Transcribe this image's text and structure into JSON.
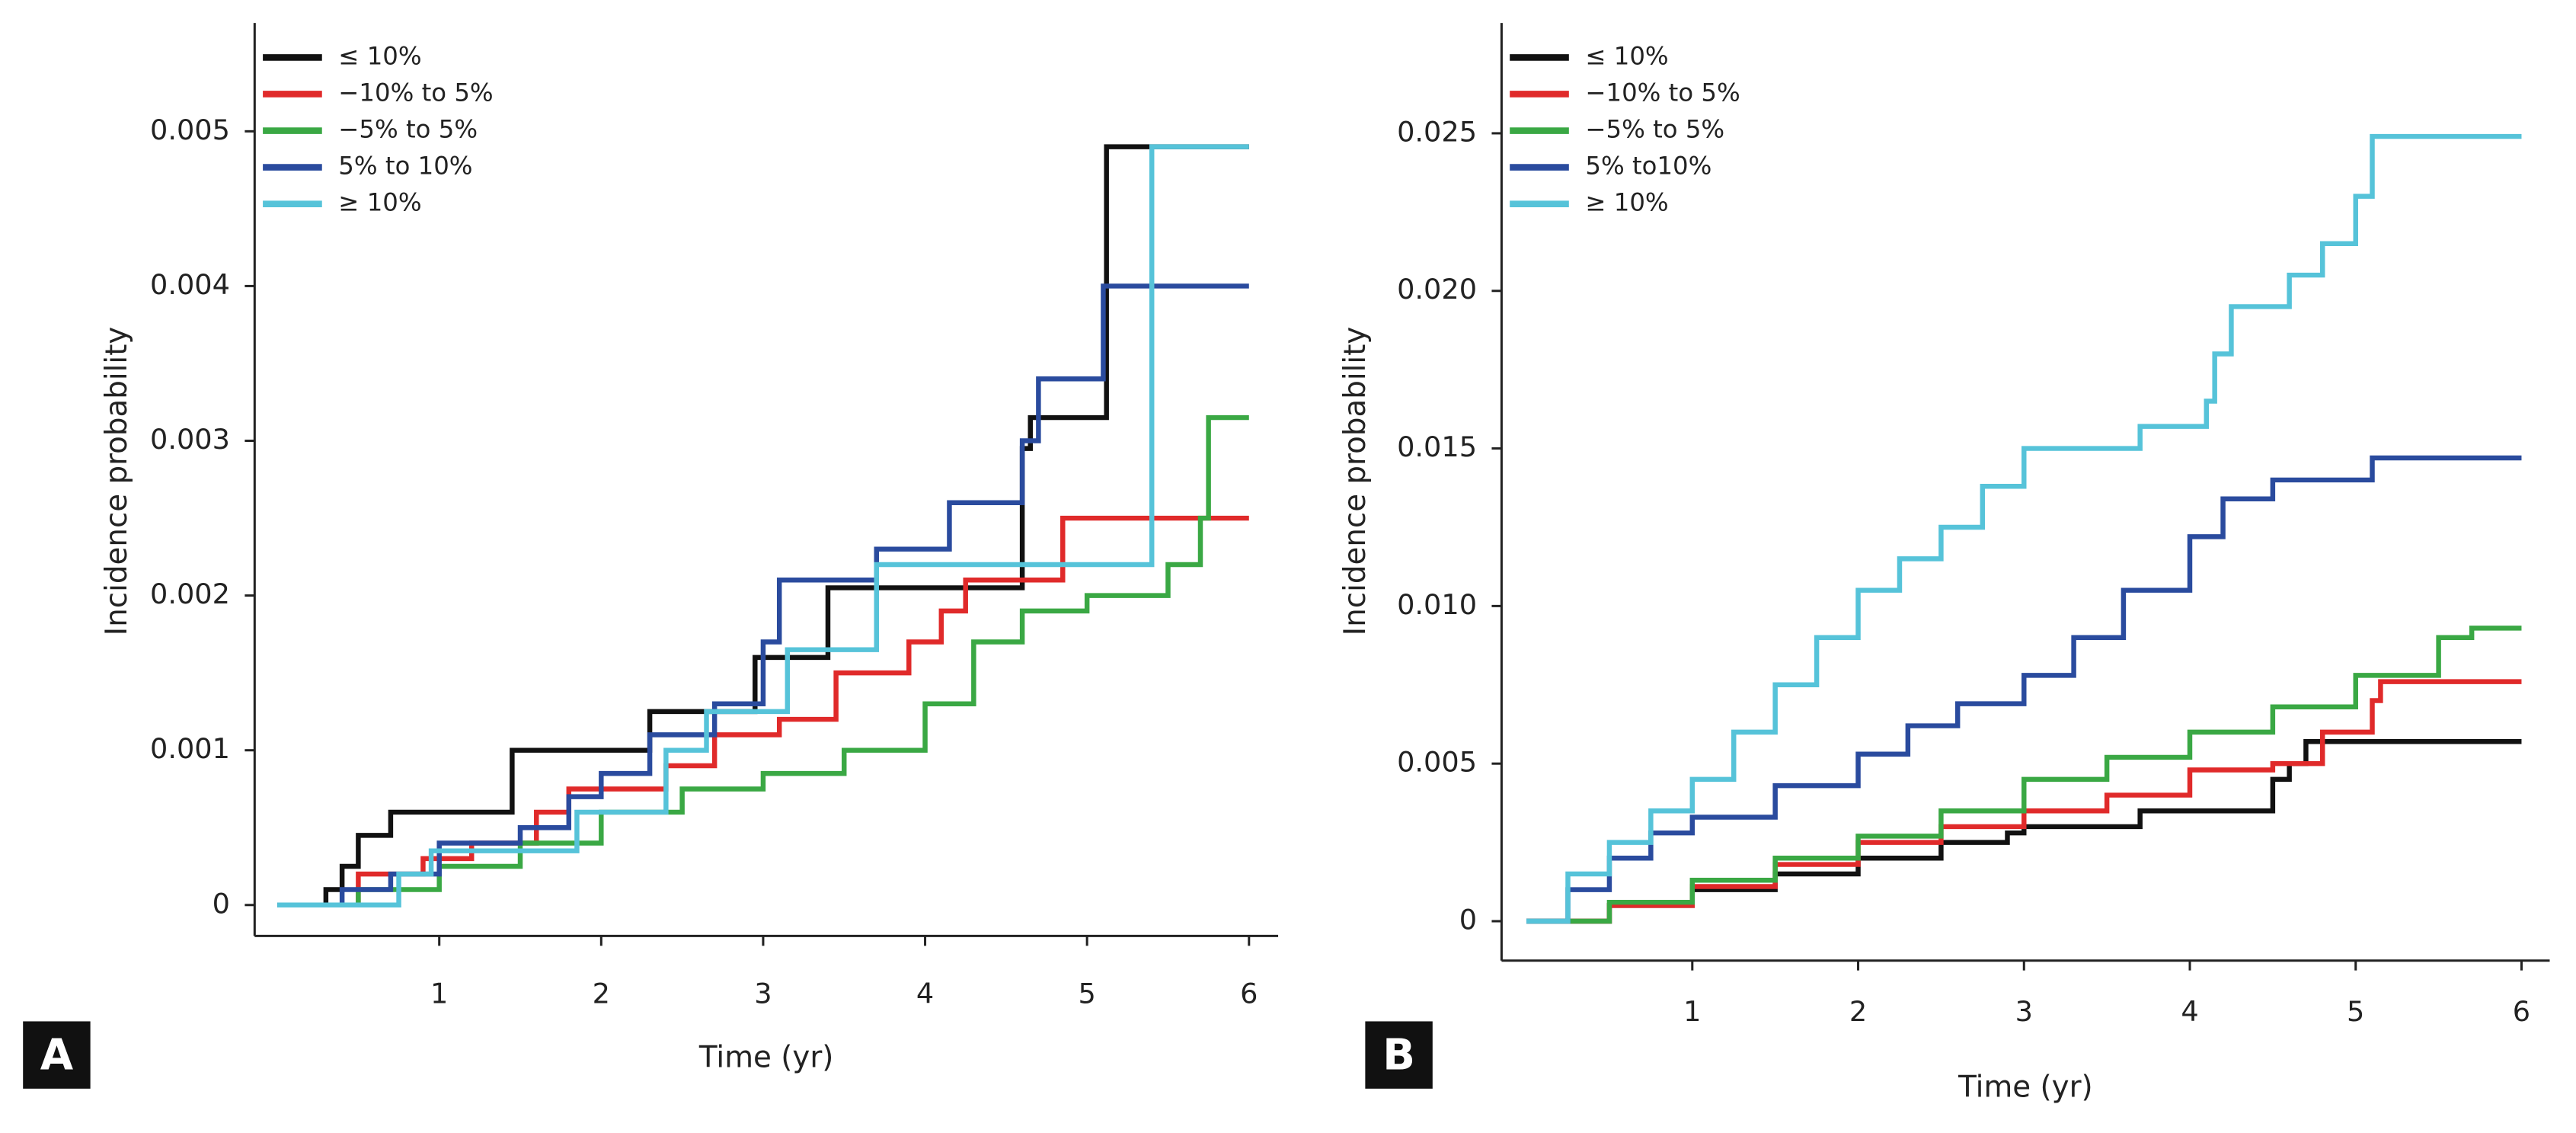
{
  "chart_data": [
    {
      "type": "line",
      "step": "post",
      "panel": "A",
      "xlabel": "Time (yr)",
      "ylabel": "Incidence probability",
      "legend": "upper left",
      "xlim": [
        -0.14,
        6.18
      ],
      "ylim": [
        -0.0002,
        0.0057
      ],
      "xticks": [
        1,
        2,
        3,
        4,
        5,
        6
      ],
      "yticks": [
        0,
        0.001,
        0.002,
        0.003,
        0.004,
        0.005
      ],
      "series": [
        {
          "name": "≤ 10%",
          "color": "#111111",
          "x": [
            0,
            0.3,
            0.4,
            0.5,
            0.7,
            1.45,
            2.3,
            2.95,
            3.4,
            4.6,
            4.65,
            5.12,
            6
          ],
          "values": [
            0,
            0.0001,
            0.00025,
            0.00045,
            0.0006,
            0.001,
            0.00125,
            0.0016,
            0.00205,
            0.00295,
            0.00315,
            0.0049,
            0.0049
          ]
        },
        {
          "name": "−10% to 5%",
          "color": "#e02a2a",
          "x": [
            0,
            0.5,
            0.9,
            1.2,
            1.6,
            1.8,
            2.4,
            2.7,
            3.1,
            3.45,
            3.9,
            4.1,
            4.25,
            4.85,
            6
          ],
          "values": [
            0,
            0.0002,
            0.0003,
            0.0004,
            0.0006,
            0.00075,
            0.0009,
            0.0011,
            0.0012,
            0.0015,
            0.0017,
            0.0019,
            0.0021,
            0.0025,
            0.0025
          ]
        },
        {
          "name": "−5% to 5%",
          "color": "#3aa844",
          "x": [
            0,
            0.5,
            1,
            1.5,
            2,
            2.5,
            3,
            3.5,
            4,
            4.3,
            4.6,
            5,
            5.5,
            5.7,
            5.75,
            6
          ],
          "values": [
            0,
            0.0001,
            0.00025,
            0.0004,
            0.0006,
            0.00075,
            0.00085,
            0.001,
            0.0013,
            0.0017,
            0.0019,
            0.002,
            0.0022,
            0.0025,
            0.00315,
            0.00315
          ]
        },
        {
          "name": "5% to 10%",
          "color": "#2a4b9e",
          "x": [
            0,
            0.4,
            0.7,
            1,
            1.5,
            1.8,
            2,
            2.3,
            2.7,
            3,
            3.1,
            3.7,
            4.15,
            4.6,
            4.7,
            5.1,
            6
          ],
          "values": [
            0,
            0.0001,
            0.0002,
            0.0004,
            0.0005,
            0.0007,
            0.00085,
            0.0011,
            0.0013,
            0.0017,
            0.0021,
            0.0023,
            0.0026,
            0.003,
            0.0034,
            0.004,
            0.004
          ]
        },
        {
          "name": "≥ 10%",
          "color": "#56c3d9",
          "x": [
            0,
            0.75,
            0.95,
            1.85,
            2.4,
            2.65,
            3.15,
            3.7,
            5.4,
            6
          ],
          "values": [
            0,
            0.0002,
            0.00035,
            0.0006,
            0.001,
            0.00125,
            0.00165,
            0.0022,
            0.0049,
            0.0049
          ]
        }
      ]
    },
    {
      "type": "line",
      "step": "post",
      "panel": "B",
      "xlabel": "Time (yr)",
      "ylabel": "Incidence probability",
      "legend": "upper left",
      "xlim": [
        -0.15,
        6.17
      ],
      "ylim": [
        -0.00125,
        0.0285
      ],
      "xticks": [
        1,
        2,
        3,
        4,
        5,
        6
      ],
      "yticks": [
        0,
        0.005,
        {
          "value": 0.01,
          "label": "0.010"
        },
        0.015,
        {
          "value": 0.02,
          "label": "0.020"
        },
        0.025
      ],
      "series": [
        {
          "name": "≤ 10%",
          "color": "#111111",
          "x": [
            0,
            0.5,
            1,
            1.5,
            2,
            2.5,
            2.9,
            3,
            3.5,
            3.7,
            4,
            4.5,
            4.6,
            4.7,
            6
          ],
          "values": [
            0,
            0.0005,
            0.001,
            0.0015,
            0.002,
            0.0025,
            0.0028,
            0.003,
            0.003,
            0.0035,
            0.0035,
            0.0045,
            0.005,
            0.0057,
            0.0057
          ]
        },
        {
          "name": "−10% to 5%",
          "color": "#e02a2a",
          "x": [
            0,
            0.5,
            1,
            1.5,
            2,
            2.5,
            3,
            3.5,
            4,
            4.5,
            4.8,
            5.1,
            5.15,
            6
          ],
          "values": [
            0,
            0.0005,
            0.0011,
            0.0018,
            0.0025,
            0.003,
            0.0035,
            0.004,
            0.0048,
            0.005,
            0.006,
            0.007,
            0.0076,
            0.0076
          ]
        },
        {
          "name": "−5% to 5%",
          "color": "#3aa844",
          "x": [
            0,
            0.5,
            1,
            1.5,
            2,
            2.5,
            3,
            3.5,
            4,
            4.5,
            5,
            5.5,
            5.7,
            6
          ],
          "values": [
            0,
            0.0006,
            0.0013,
            0.002,
            0.0027,
            0.0035,
            0.0045,
            0.0052,
            0.006,
            0.0068,
            0.0078,
            0.009,
            0.0093,
            0.0093
          ]
        },
        {
          "name": "5% to10%",
          "color": "#2a4b9e",
          "x": [
            0,
            0.25,
            0.5,
            0.75,
            1,
            1.5,
            2,
            2.3,
            2.6,
            3,
            3.3,
            3.6,
            4,
            4.2,
            4.5,
            5.1,
            6
          ],
          "values": [
            0,
            0.001,
            0.002,
            0.0028,
            0.0033,
            0.0043,
            0.0053,
            0.0062,
            0.0069,
            0.0078,
            0.009,
            0.0105,
            0.0122,
            0.0134,
            0.014,
            0.0147,
            0.0147
          ]
        },
        {
          "name": "≥ 10%",
          "color": "#56c3d9",
          "x": [
            0,
            0.25,
            0.5,
            0.75,
            1,
            1.25,
            1.5,
            1.75,
            2,
            2.25,
            2.5,
            2.75,
            3,
            3.7,
            4.1,
            4.15,
            4.25,
            4.6,
            4.8,
            5,
            5.1,
            6
          ],
          "values": [
            0,
            0.0015,
            0.0025,
            0.0035,
            0.0045,
            0.006,
            0.0075,
            0.009,
            0.0105,
            0.0115,
            0.0125,
            0.0138,
            0.015,
            0.0157,
            0.0165,
            0.018,
            0.0195,
            0.0205,
            0.0215,
            0.023,
            0.0249,
            0.0249
          ]
        }
      ]
    }
  ]
}
